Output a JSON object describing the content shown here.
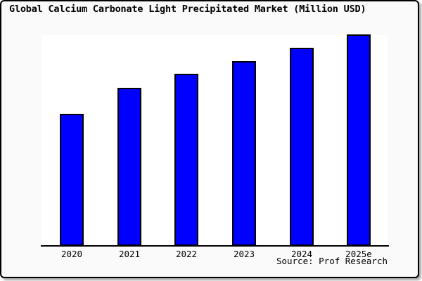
{
  "window": {
    "background": "#fafafa",
    "frame_border_color": "#000000",
    "plot_background": "#ffffff"
  },
  "header": {
    "title": "Global Calcium Carbonate Light Precipitated Market (Million USD)"
  },
  "footer": {
    "source": "Source: Prof Research"
  },
  "chart_data": {
    "type": "bar",
    "title": "Global Calcium Carbonate Light Precipitated Market (Million USD)",
    "categories": [
      "2020",
      "2021",
      "2022",
      "2023",
      "2024",
      "2025e"
    ],
    "values": [
      188,
      225,
      245,
      263,
      282,
      301
    ],
    "values_scale": "relative bar heights (no numeric axis or data labels shown in chart)",
    "xlabel": "",
    "ylabel": "",
    "ylim": [
      0,
      301
    ],
    "grid": false,
    "legend": false,
    "bar_color": "#0000ff",
    "bar_border_color": "#000000",
    "axis_color": "#000000",
    "annotations": [
      "Source: Prof Research"
    ]
  }
}
